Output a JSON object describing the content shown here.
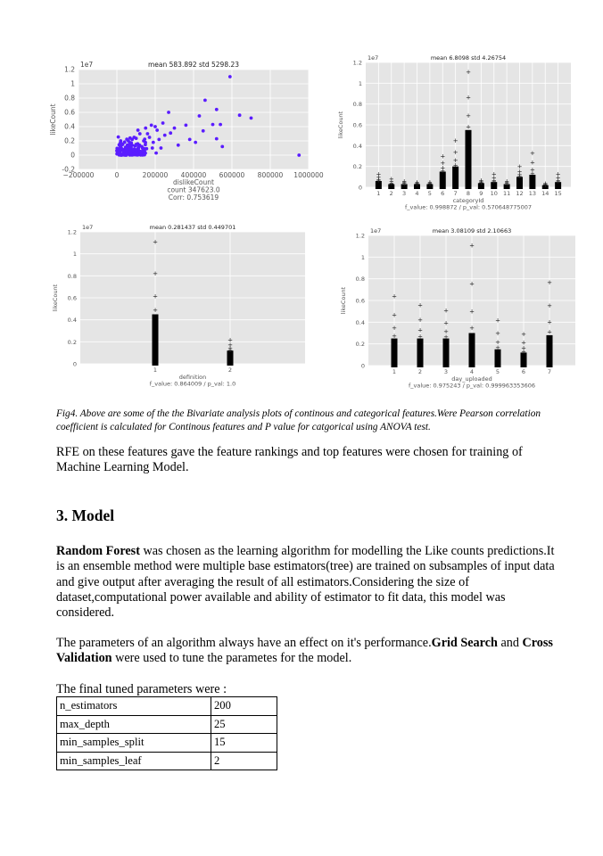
{
  "chart_data": [
    {
      "type": "scatter",
      "title": "mean 583.892 std 5298.23",
      "xlabel": "dislikeCount",
      "ylabel": "likeCount",
      "y_multiplier": "1e7",
      "notes": [
        "count 347623.0",
        "Corr: 0.753619"
      ],
      "xlim": [
        -200000,
        1000000
      ],
      "ylim": [
        -0.2,
        1.2
      ],
      "x_ticks": [
        -200000,
        0,
        200000,
        400000,
        600000,
        800000,
        1000000
      ],
      "y_ticks": [
        -0.2,
        0.0,
        0.2,
        0.4,
        0.6,
        0.8,
        1.0,
        1.2
      ],
      "color": "#5a1cff",
      "grid": true,
      "points": [
        [
          590000,
          1.1
        ],
        [
          460000,
          0.77
        ],
        [
          270000,
          0.6
        ],
        [
          520000,
          0.64
        ],
        [
          640000,
          0.56
        ],
        [
          700000,
          0.52
        ],
        [
          950000,
          0.0
        ],
        [
          430000,
          0.55
        ],
        [
          500000,
          0.43
        ],
        [
          540000,
          0.43
        ],
        [
          360000,
          0.42
        ],
        [
          450000,
          0.34
        ],
        [
          300000,
          0.38
        ],
        [
          240000,
          0.45
        ],
        [
          200000,
          0.4
        ],
        [
          180000,
          0.42
        ],
        [
          150000,
          0.38
        ],
        [
          210000,
          0.35
        ],
        [
          160000,
          0.3
        ],
        [
          120000,
          0.3
        ],
        [
          90000,
          0.25
        ],
        [
          80000,
          0.22
        ],
        [
          60000,
          0.2
        ],
        [
          40000,
          0.18
        ],
        [
          30000,
          0.15
        ],
        [
          20000,
          0.12
        ],
        [
          10000,
          0.08
        ],
        [
          5000,
          0.05
        ],
        [
          2000,
          0.02
        ],
        [
          100000,
          0.15
        ],
        [
          130000,
          0.12
        ],
        [
          70000,
          0.1
        ],
        [
          50000,
          0.08
        ],
        [
          140000,
          0.2
        ],
        [
          170000,
          0.25
        ],
        [
          190000,
          0.18
        ],
        [
          220000,
          0.22
        ],
        [
          250000,
          0.28
        ],
        [
          110000,
          0.35
        ],
        [
          380000,
          0.22
        ],
        [
          410000,
          0.18
        ],
        [
          520000,
          0.23
        ],
        [
          550000,
          0.12
        ],
        [
          280000,
          0.31
        ],
        [
          320000,
          0.14
        ],
        [
          230000,
          0.1
        ],
        [
          20000,
          0.2
        ],
        [
          15000,
          0.03
        ],
        [
          35000,
          0.06
        ],
        [
          45000,
          0.11
        ],
        [
          65000,
          0.04
        ],
        [
          85000,
          0.07
        ],
        [
          95000,
          0.13
        ],
        [
          125000,
          0.05
        ],
        [
          155000,
          0.09
        ],
        [
          185000,
          0.1
        ],
        [
          205000,
          0.03
        ],
        [
          75000,
          0.17
        ],
        [
          55000,
          0.14
        ],
        [
          25000,
          0.09
        ]
      ]
    },
    {
      "type": "box",
      "title": "mean 6.8098 std 4.26754",
      "xlabel": "categoryId",
      "ylabel": "likeCount",
      "y_multiplier": "1e7",
      "notes": [
        "f_value: 0.998872 / p_val: 0.570648775007"
      ],
      "categories": [
        "1",
        "2",
        "3",
        "4",
        "5",
        "6",
        "7",
        "8",
        "9",
        "10",
        "11",
        "12",
        "13",
        "14",
        "15"
      ],
      "ylim": [
        0.0,
        1.2
      ],
      "y_ticks": [
        0.0,
        0.2,
        0.4,
        0.6,
        0.8,
        1.0,
        1.2
      ],
      "max_values": [
        0.13,
        0.08,
        0.06,
        0.05,
        0.05,
        0.3,
        0.45,
        1.11,
        0.07,
        0.13,
        0.06,
        0.2,
        0.33,
        0.04,
        0.13
      ],
      "dense_top": [
        0.06,
        0.03,
        0.03,
        0.03,
        0.03,
        0.15,
        0.2,
        0.55,
        0.04,
        0.05,
        0.03,
        0.1,
        0.12,
        0.02,
        0.05
      ],
      "grid": true
    },
    {
      "type": "box",
      "title": "mean 0.281437 std 0.449701",
      "xlabel": "definition",
      "ylabel": "likeCount",
      "y_multiplier": "1e7",
      "notes": [
        "f_value: 0.864009 / p_val: 1.0"
      ],
      "categories": [
        "1",
        "2"
      ],
      "ylim": [
        0.0,
        1.2
      ],
      "y_ticks": [
        0.0,
        0.2,
        0.4,
        0.6,
        0.8,
        1.0,
        1.2
      ],
      "max_values": [
        1.11,
        0.22
      ],
      "dense_top": [
        0.45,
        0.12
      ],
      "grid": true
    },
    {
      "type": "box",
      "title": "mean 3.08109 std 2.10663",
      "xlabel": "day_uploaded",
      "ylabel": "likeCount",
      "y_multiplier": "1e7",
      "notes": [
        "f_value: 0.975243 / p_val: 0.999963353606"
      ],
      "categories": [
        "1",
        "2",
        "3",
        "4",
        "5",
        "6",
        "7"
      ],
      "ylim": [
        0.0,
        1.2
      ],
      "y_ticks": [
        0.0,
        0.2,
        0.4,
        0.6,
        0.8,
        1.0,
        1.2
      ],
      "max_values": [
        0.64,
        0.56,
        0.51,
        1.11,
        0.42,
        0.29,
        0.77
      ],
      "dense_top": [
        0.25,
        0.25,
        0.25,
        0.3,
        0.15,
        0.12,
        0.28
      ],
      "grid": true
    }
  ],
  "caption": "Fig4. Above are some of the the Bivariate analysis plots of continous and categorical features.Were Pearson correlation coefficient is calculated for Continous features and P value for catgorical using ANOVA test.",
  "rfe_text": "RFE on these features gave the feature rankings and top features were chosen for training of Machine Learning Model.",
  "section_heading": "3. Model",
  "model_para": {
    "bold_lead": "Random Forest",
    "text": " was chosen as the learning algorithm for modelling the Like counts predictions.It is an ensemble method were multiple base estimators(tree) are trained on subsamples of input data and give output after averaging the result of all estimators.Considering the size of dataset,computational power available and ability of estimator to fit data, this model was considered."
  },
  "tuning_para": {
    "text_before": "The parameters of an algorithm always have an effect on it's performance.",
    "bold1": "Grid Search",
    "mid": " and ",
    "bold2": "Cross Validation",
    "text_after": " were used to tune the parametes for the model."
  },
  "table_intro": "The final tuned parameters were :",
  "parameters": [
    {
      "name": "n_estimators",
      "value": "200"
    },
    {
      "name": "max_depth",
      "value": "25"
    },
    {
      "name": "min_samples_split",
      "value": "15"
    },
    {
      "name": "min_samples_leaf",
      "value": "2"
    }
  ]
}
